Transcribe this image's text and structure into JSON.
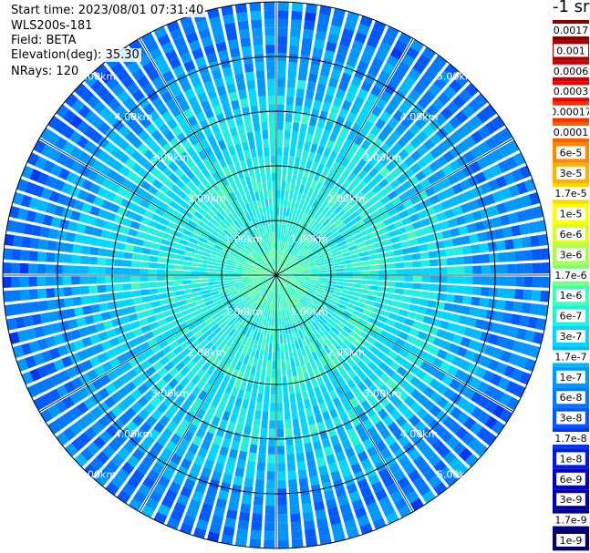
{
  "info": {
    "start_time": "Start time: 2023/08/01 07:31:40",
    "instrument": "WLS200s-181",
    "field": "Field: BETA",
    "elevation": "Elevation(deg): 35.30",
    "nrays": "NRays: 120"
  },
  "colorbar": {
    "unit_label": "-1 sr",
    "ticks": [
      "0.0017",
      "0.001",
      "0.0006",
      "0.0003",
      "0.00017",
      "0.0001",
      "6e-5",
      "3e-5",
      "1.7e-5",
      "1e-5",
      "6e-6",
      "3e-6",
      "1.7e-6",
      "1e-6",
      "6e-7",
      "3e-7",
      "1.7e-7",
      "1e-7",
      "6e-8",
      "3e-8",
      "1.7e-8",
      "1e-8",
      "6e-9",
      "3e-9",
      "1.7e-9",
      "1e-9"
    ],
    "colors": [
      "#8b0000",
      "#ab0000",
      "#cc0000",
      "#f00000",
      "#ff3000",
      "#ff6000",
      "#ff8800",
      "#ffb000",
      "#ffd800",
      "#ffff00",
      "#d8ff20",
      "#a8ff50",
      "#78ff80",
      "#40ffb8",
      "#20f0e0",
      "#00d8ff",
      "#00b8ff",
      "#0098ff",
      "#0078ff",
      "#0058ff",
      "#0038f0",
      "#0018e0",
      "#0000c8",
      "#0000a8",
      "#000088",
      "#000068"
    ]
  },
  "chart_data": {
    "type": "heatmap",
    "subtype": "ppi-polar",
    "field": "BETA",
    "scale": "log",
    "rays": 120,
    "max_range_km": 5.0,
    "range_rings_km": [
      1,
      2,
      3,
      4,
      5
    ],
    "ring_labels": [
      "1.00km",
      "2.00km",
      "3.00km",
      "4.00km",
      "5.00km"
    ],
    "spokes_deg": [
      0,
      30,
      60,
      90,
      120,
      150,
      180,
      210,
      240,
      270,
      300,
      330
    ],
    "radial_profile": {
      "range_km": [
        0.0,
        0.5,
        1.0,
        1.5,
        2.0,
        2.5,
        3.0,
        3.5,
        4.0,
        4.5,
        5.0
      ],
      "dominant_color_index": [
        13,
        13,
        14,
        14,
        14,
        15,
        15,
        16,
        17,
        18,
        18
      ]
    }
  }
}
